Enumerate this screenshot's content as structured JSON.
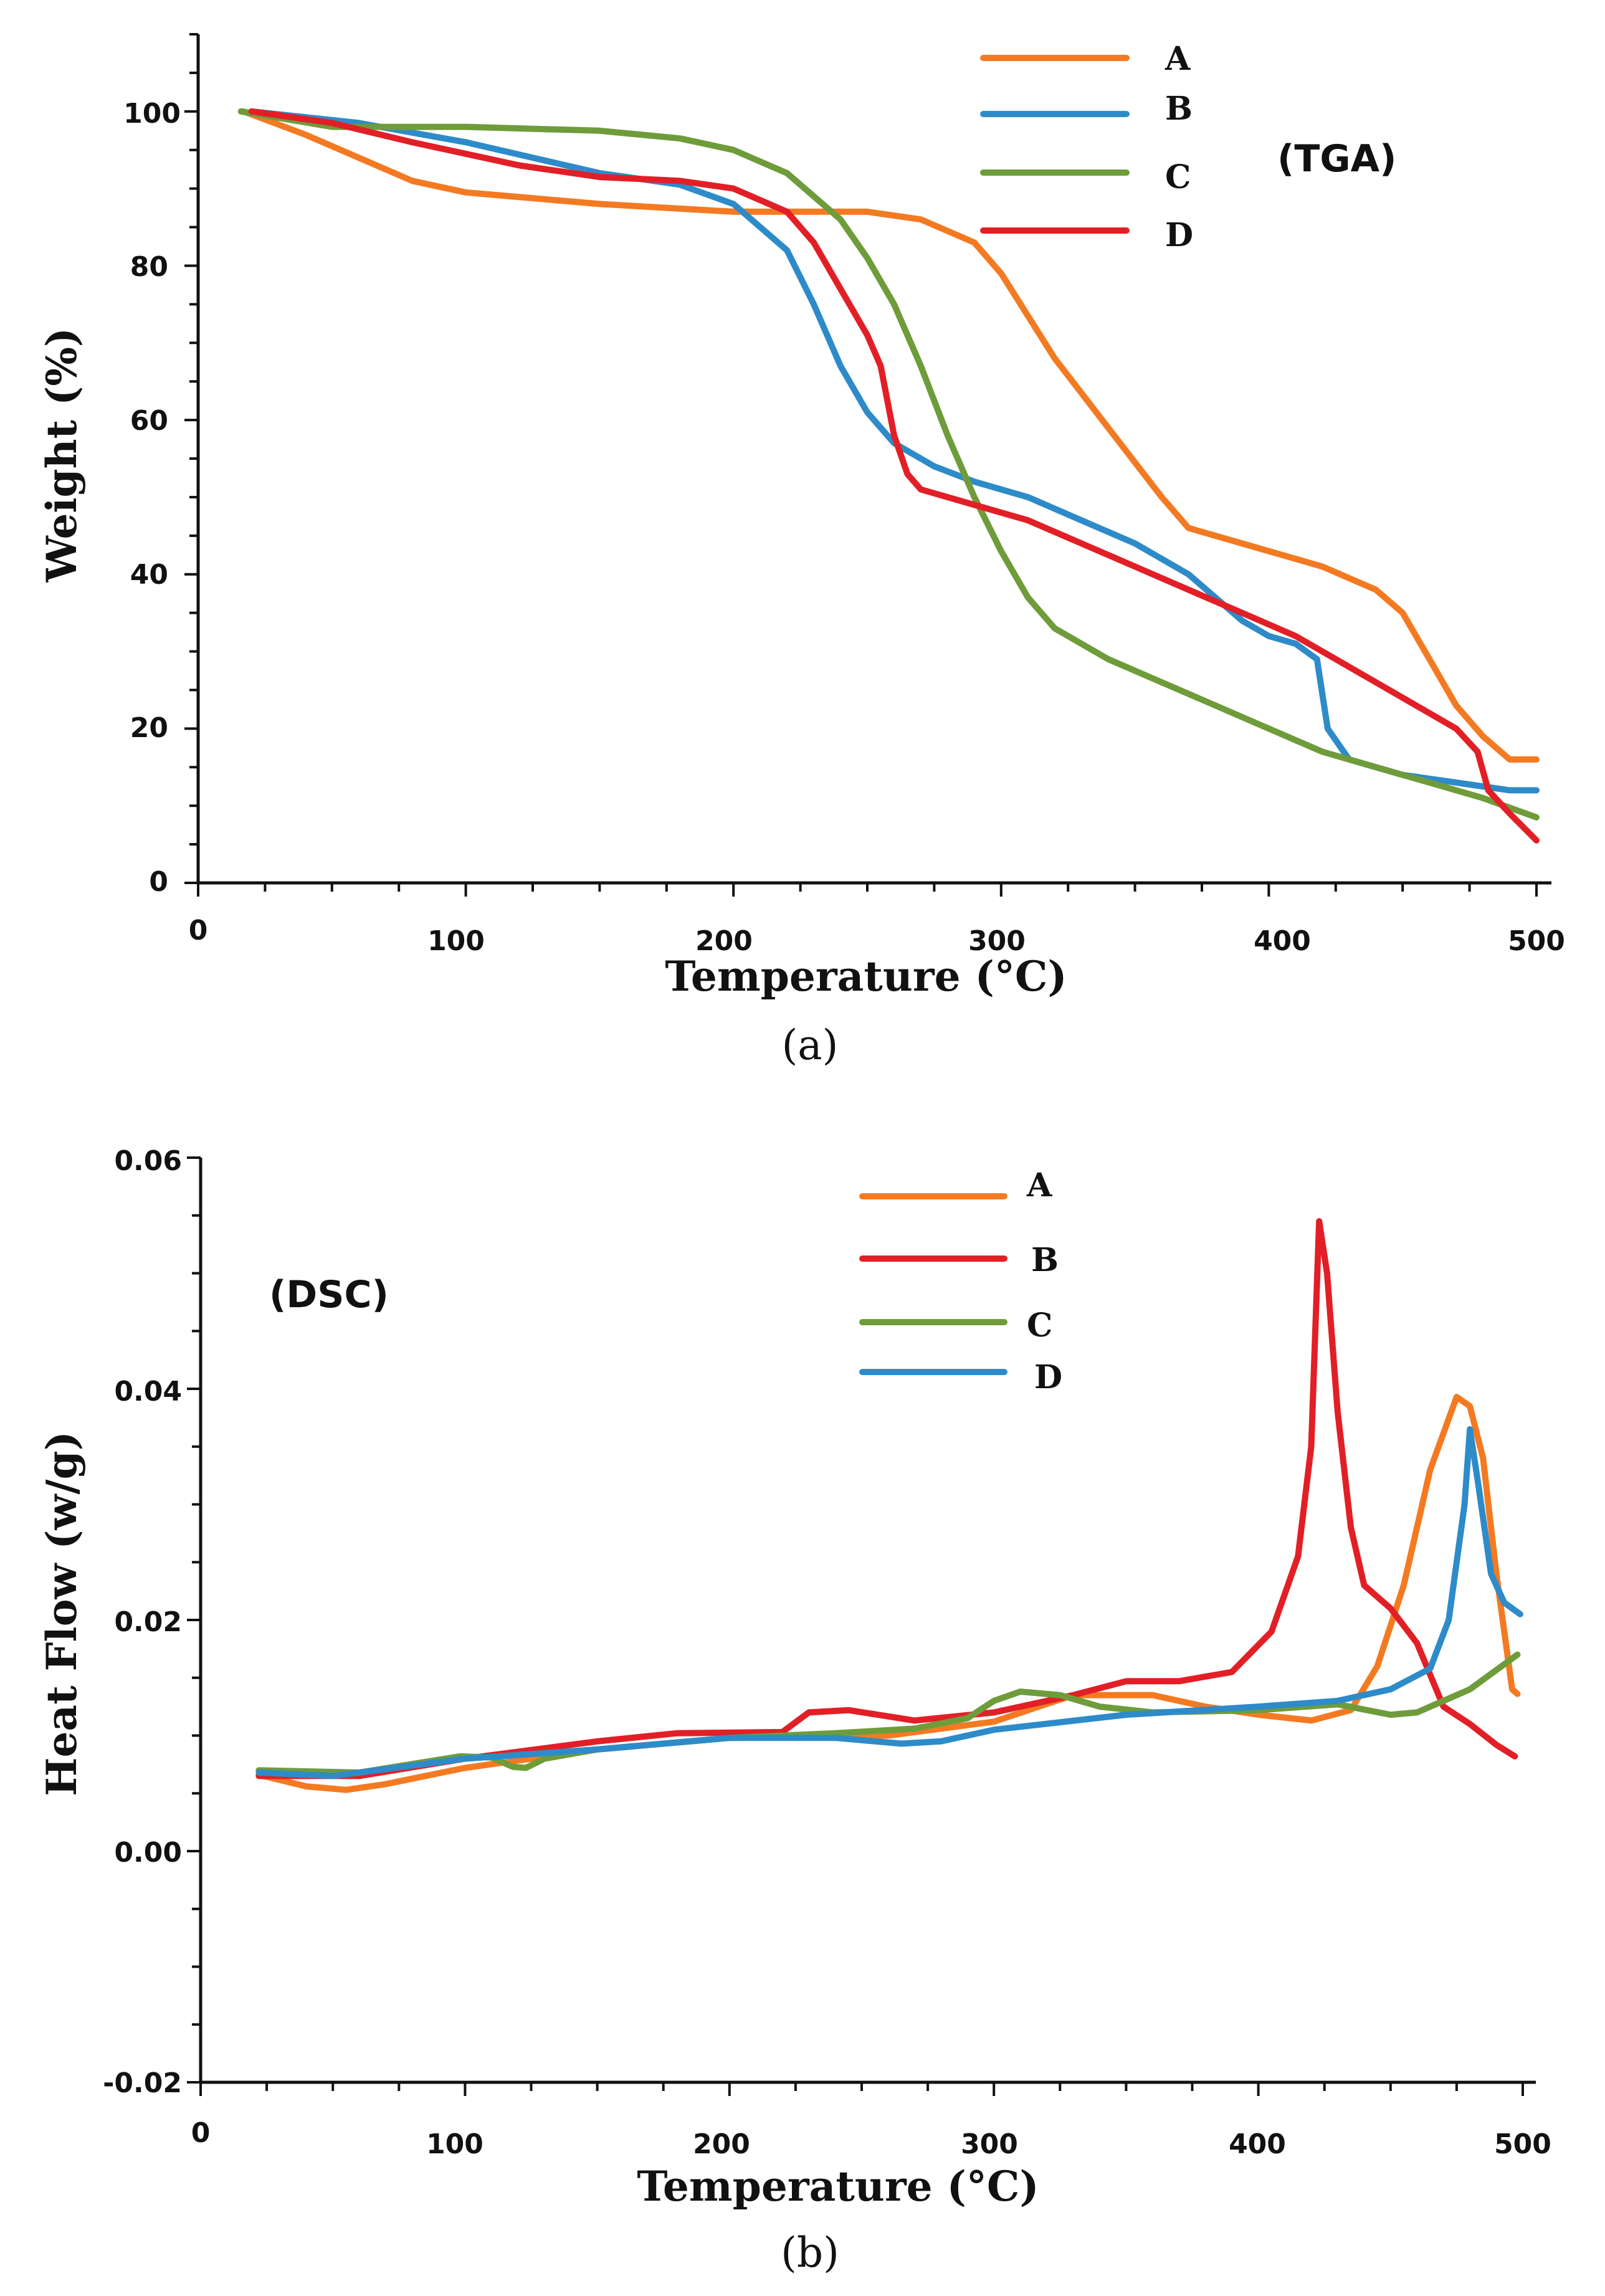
{
  "chart_data": [
    {
      "type": "line",
      "tag": "(TGA)",
      "caption": "(a)",
      "xlabel": "Temperature (°C)",
      "ylabel": "Weight (%)",
      "xlim": [
        0,
        500
      ],
      "ylim": [
        0,
        110
      ],
      "xticks": [
        {
          "v": 0,
          "label": "0"
        },
        {
          "v": 100,
          "label": "100"
        },
        {
          "v": 200,
          "label": "200"
        },
        {
          "v": 300,
          "label": "300"
        },
        {
          "v": 400,
          "label": "400"
        },
        {
          "v": 500,
          "label": "500"
        }
      ],
      "yticks": [
        {
          "v": 0,
          "label": "0"
        },
        {
          "v": 20,
          "label": "20"
        },
        {
          "v": 40,
          "label": "40"
        },
        {
          "v": 60,
          "label": "60"
        },
        {
          "v": 80,
          "label": "80"
        },
        {
          "v": 100,
          "label": "100"
        }
      ],
      "series": [
        {
          "name": "A",
          "color": "#F47A22",
          "points": [
            [
              17,
              100
            ],
            [
              40,
              97
            ],
            [
              60,
              94
            ],
            [
              80,
              91
            ],
            [
              100,
              89.5
            ],
            [
              150,
              88
            ],
            [
              200,
              87
            ],
            [
              250,
              87
            ],
            [
              270,
              86
            ],
            [
              290,
              83
            ],
            [
              300,
              79
            ],
            [
              320,
              68
            ],
            [
              340,
              59
            ],
            [
              360,
              50
            ],
            [
              370,
              46
            ],
            [
              380,
              45
            ],
            [
              400,
              43
            ],
            [
              420,
              41
            ],
            [
              440,
              38
            ],
            [
              450,
              35
            ],
            [
              460,
              29
            ],
            [
              470,
              23
            ],
            [
              480,
              19
            ],
            [
              490,
              16
            ],
            [
              495,
              16
            ],
            [
              500,
              16
            ]
          ]
        },
        {
          "name": "B",
          "color": "#2E8BC9",
          "points": [
            [
              20,
              100
            ],
            [
              60,
              98.5
            ],
            [
              100,
              96
            ],
            [
              150,
              92
            ],
            [
              180,
              90.5
            ],
            [
              200,
              88
            ],
            [
              220,
              82
            ],
            [
              230,
              75
            ],
            [
              240,
              67
            ],
            [
              250,
              61
            ],
            [
              260,
              57
            ],
            [
              275,
              54
            ],
            [
              290,
              52
            ],
            [
              310,
              50
            ],
            [
              330,
              47
            ],
            [
              350,
              44
            ],
            [
              370,
              40
            ],
            [
              380,
              37
            ],
            [
              390,
              34
            ],
            [
              400,
              32
            ],
            [
              410,
              31
            ],
            [
              418,
              29
            ],
            [
              422,
              20
            ],
            [
              430,
              16
            ],
            [
              450,
              14
            ],
            [
              470,
              13
            ],
            [
              490,
              12
            ],
            [
              500,
              12
            ]
          ]
        },
        {
          "name": "C",
          "color": "#6E9C3A",
          "points": [
            [
              16,
              100
            ],
            [
              50,
              98
            ],
            [
              100,
              98
            ],
            [
              150,
              97.5
            ],
            [
              180,
              96.5
            ],
            [
              200,
              95
            ],
            [
              220,
              92
            ],
            [
              240,
              86
            ],
            [
              250,
              81
            ],
            [
              260,
              75
            ],
            [
              270,
              67
            ],
            [
              280,
              58
            ],
            [
              290,
              50
            ],
            [
              300,
              43
            ],
            [
              310,
              37
            ],
            [
              320,
              33
            ],
            [
              340,
              29
            ],
            [
              360,
              26
            ],
            [
              380,
              23
            ],
            [
              400,
              20
            ],
            [
              420,
              17
            ],
            [
              440,
              15
            ],
            [
              460,
              13
            ],
            [
              480,
              11
            ],
            [
              500,
              8.5
            ]
          ]
        },
        {
          "name": "D",
          "color": "#E21F26",
          "points": [
            [
              20,
              100
            ],
            [
              50,
              98.5
            ],
            [
              80,
              96
            ],
            [
              100,
              94.5
            ],
            [
              120,
              93
            ],
            [
              150,
              91.5
            ],
            [
              180,
              91
            ],
            [
              200,
              90
            ],
            [
              220,
              87
            ],
            [
              230,
              83
            ],
            [
              240,
              77
            ],
            [
              250,
              71
            ],
            [
              255,
              67
            ],
            [
              260,
              58
            ],
            [
              265,
              53
            ],
            [
              270,
              51
            ],
            [
              280,
              50
            ],
            [
              290,
              49
            ],
            [
              310,
              47
            ],
            [
              330,
              44
            ],
            [
              350,
              41
            ],
            [
              370,
              38
            ],
            [
              390,
              35
            ],
            [
              410,
              32
            ],
            [
              430,
              28
            ],
            [
              450,
              24
            ],
            [
              470,
              20
            ],
            [
              478,
              17
            ],
            [
              482,
              12
            ],
            [
              490,
              9
            ],
            [
              500,
              5.5
            ]
          ]
        }
      ]
    },
    {
      "type": "line",
      "tag": "(DSC)",
      "caption": "(b)",
      "xlabel": "Temperature (°C)",
      "ylabel": "Heat Flow (w/g)",
      "xlim": [
        0,
        500
      ],
      "ylim": [
        -0.02,
        0.06
      ],
      "xticks": [
        {
          "v": 0,
          "label": "0"
        },
        {
          "v": 100,
          "label": "100"
        },
        {
          "v": 200,
          "label": "200"
        },
        {
          "v": 300,
          "label": "300"
        },
        {
          "v": 400,
          "label": "400"
        },
        {
          "v": 500,
          "label": "500"
        }
      ],
      "yticks": [
        {
          "v": -0.02,
          "label": "-0.02"
        },
        {
          "v": 0,
          "label": "0.00"
        },
        {
          "v": 0.02,
          "label": "0.02"
        },
        {
          "v": 0.04,
          "label": "0.04"
        },
        {
          "v": 0.06,
          "label": "0.06"
        }
      ],
      "series": [
        {
          "name": "A",
          "color": "#F47A22",
          "points": [
            [
              22,
              0.0066
            ],
            [
              40,
              0.0056
            ],
            [
              55,
              0.0053
            ],
            [
              70,
              0.0058
            ],
            [
              100,
              0.0072
            ],
            [
              150,
              0.0088
            ],
            [
              200,
              0.0098
            ],
            [
              260,
              0.01
            ],
            [
              300,
              0.0112
            ],
            [
              330,
              0.0135
            ],
            [
              360,
              0.0135
            ],
            [
              380,
              0.0125
            ],
            [
              400,
              0.0118
            ],
            [
              420,
              0.0113
            ],
            [
              435,
              0.0122
            ],
            [
              445,
              0.016
            ],
            [
              455,
              0.023
            ],
            [
              465,
              0.033
            ],
            [
              475,
              0.0393
            ],
            [
              480,
              0.0385
            ],
            [
              485,
              0.034
            ],
            [
              490,
              0.024
            ],
            [
              496,
              0.014
            ],
            [
              498,
              0.0136
            ]
          ]
        },
        {
          "name": "B",
          "color": "#E21F26",
          "points": [
            [
              22,
              0.0065
            ],
            [
              60,
              0.0065
            ],
            [
              100,
              0.008
            ],
            [
              150,
              0.0095
            ],
            [
              180,
              0.0102
            ],
            [
              220,
              0.0103
            ],
            [
              230,
              0.012
            ],
            [
              245,
              0.0122
            ],
            [
              270,
              0.0113
            ],
            [
              300,
              0.012
            ],
            [
              330,
              0.0135
            ],
            [
              350,
              0.0147
            ],
            [
              370,
              0.0147
            ],
            [
              390,
              0.0155
            ],
            [
              405,
              0.019
            ],
            [
              415,
              0.0255
            ],
            [
              420,
              0.035
            ],
            [
              423,
              0.0545
            ],
            [
              426,
              0.05
            ],
            [
              430,
              0.038
            ],
            [
              435,
              0.028
            ],
            [
              440,
              0.023
            ],
            [
              450,
              0.021
            ],
            [
              460,
              0.018
            ],
            [
              470,
              0.0125
            ],
            [
              480,
              0.011
            ],
            [
              490,
              0.0092
            ],
            [
              497,
              0.0082
            ]
          ]
        },
        {
          "name": "C",
          "color": "#6E9C3A",
          "points": [
            [
              22,
              0.007
            ],
            [
              60,
              0.0068
            ],
            [
              98,
              0.0082
            ],
            [
              110,
              0.0081
            ],
            [
              118,
              0.0073
            ],
            [
              123,
              0.0072
            ],
            [
              130,
              0.008
            ],
            [
              150,
              0.0088
            ],
            [
              200,
              0.0098
            ],
            [
              240,
              0.0102
            ],
            [
              270,
              0.0106
            ],
            [
              290,
              0.0115
            ],
            [
              300,
              0.013
            ],
            [
              310,
              0.0138
            ],
            [
              325,
              0.0135
            ],
            [
              340,
              0.0125
            ],
            [
              360,
              0.012
            ],
            [
              400,
              0.0122
            ],
            [
              430,
              0.0127
            ],
            [
              450,
              0.0118
            ],
            [
              460,
              0.012
            ],
            [
              480,
              0.014
            ],
            [
              498,
              0.017
            ]
          ]
        },
        {
          "name": "D",
          "color": "#2E8BC9",
          "points": [
            [
              22,
              0.0068
            ],
            [
              50,
              0.0065
            ],
            [
              100,
              0.008
            ],
            [
              150,
              0.0088
            ],
            [
              200,
              0.0098
            ],
            [
              240,
              0.0098
            ],
            [
              265,
              0.0093
            ],
            [
              280,
              0.0095
            ],
            [
              300,
              0.0105
            ],
            [
              350,
              0.0118
            ],
            [
              400,
              0.0125
            ],
            [
              430,
              0.013
            ],
            [
              450,
              0.014
            ],
            [
              465,
              0.0158
            ],
            [
              472,
              0.02
            ],
            [
              478,
              0.03
            ],
            [
              480,
              0.0365
            ],
            [
              483,
              0.032
            ],
            [
              488,
              0.024
            ],
            [
              493,
              0.0215
            ],
            [
              499,
              0.0205
            ]
          ]
        }
      ]
    }
  ]
}
